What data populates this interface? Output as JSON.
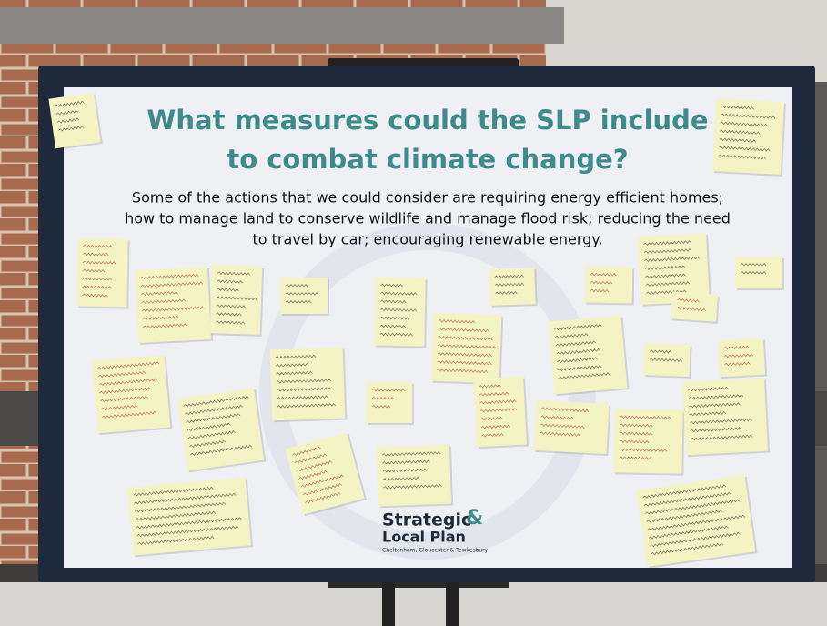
{
  "board": {
    "title_lines": [
      "What measures could the SLP include",
      "to combat climate change?"
    ],
    "subtitle_lines": [
      "Some of the actions that we could consider are requiring energy efficient homes;",
      "how to manage land to conserve wildlife and manage flood risk; reducing the need",
      "to travel by car; encouraging renewable energy."
    ],
    "logo": {
      "strategic": "Strategic",
      "ampersand": "&",
      "local_plan": "Local Plan",
      "tagline": "Cheltenham, Gloucester & Tewkesbury"
    }
  }
}
